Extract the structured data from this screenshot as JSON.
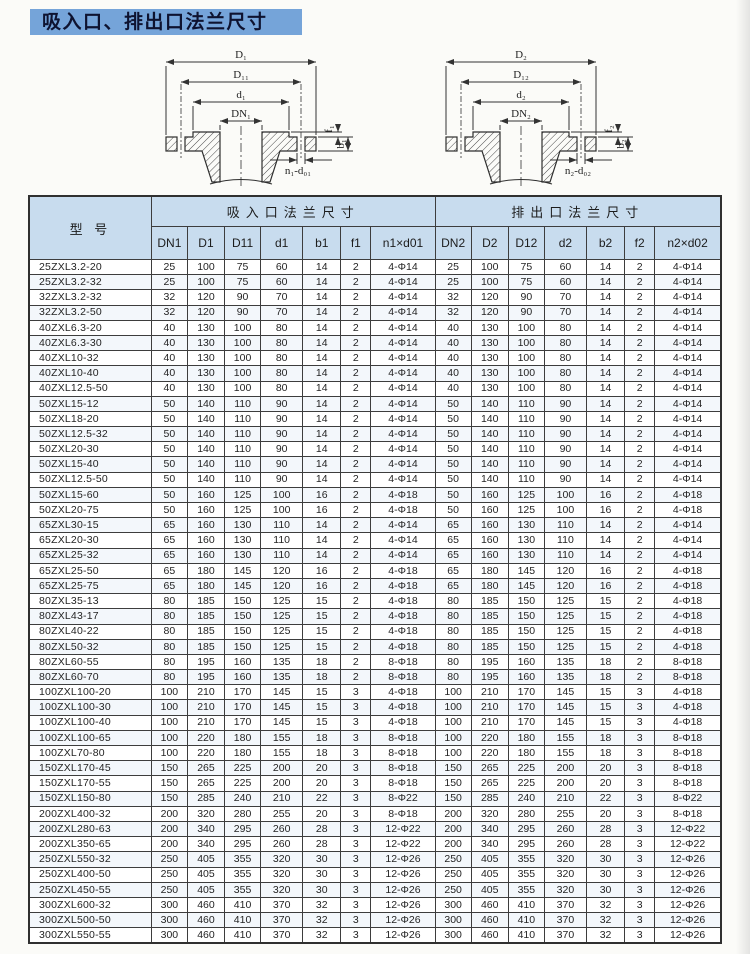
{
  "page": {
    "title": "吸入口、排出口法兰尺寸"
  },
  "diagrams": [
    {
      "outer": "D₁",
      "bolt_circle": "D₁₁",
      "seal_face": "d₁",
      "bore": "DN₁",
      "face_height": "f₁",
      "thickness": "b₁",
      "bolt_holes": "n₁-d₀₁"
    },
    {
      "outer": "D₂",
      "bolt_circle": "D₁₂",
      "seal_face": "d₂",
      "bore": "DN₂",
      "face_height": "f₂",
      "thickness": "b₂",
      "bolt_holes": "n₂-d₀₂"
    }
  ],
  "table": {
    "model_header": "型  号",
    "group_headers": [
      "吸入口法兰尺寸",
      "排出口法兰尺寸"
    ],
    "columns": [
      "DN1",
      "D1",
      "D11",
      "d1",
      "b1",
      "f1",
      "n1×d01",
      "DN2",
      "D2",
      "D12",
      "d2",
      "b2",
      "f2",
      "n2×d02"
    ],
    "rows": [
      [
        "25ZXL3.2-20",
        "25",
        "100",
        "75",
        "60",
        "14",
        "2",
        "4-Φ14",
        "25",
        "100",
        "75",
        "60",
        "14",
        "2",
        "4-Φ14"
      ],
      [
        "25ZXL3.2-32",
        "25",
        "100",
        "75",
        "60",
        "14",
        "2",
        "4-Φ14",
        "25",
        "100",
        "75",
        "60",
        "14",
        "2",
        "4-Φ14"
      ],
      [
        "32ZXL3.2-32",
        "32",
        "120",
        "90",
        "70",
        "14",
        "2",
        "4-Φ14",
        "32",
        "120",
        "90",
        "70",
        "14",
        "2",
        "4-Φ14"
      ],
      [
        "32ZXL3.2-50",
        "32",
        "120",
        "90",
        "70",
        "14",
        "2",
        "4-Φ14",
        "32",
        "120",
        "90",
        "70",
        "14",
        "2",
        "4-Φ14"
      ],
      [
        "40ZXL6.3-20",
        "40",
        "130",
        "100",
        "80",
        "14",
        "2",
        "4-Φ14",
        "40",
        "130",
        "100",
        "80",
        "14",
        "2",
        "4-Φ14"
      ],
      [
        "40ZXL6.3-30",
        "40",
        "130",
        "100",
        "80",
        "14",
        "2",
        "4-Φ14",
        "40",
        "130",
        "100",
        "80",
        "14",
        "2",
        "4-Φ14"
      ],
      [
        "40ZXL10-32",
        "40",
        "130",
        "100",
        "80",
        "14",
        "2",
        "4-Φ14",
        "40",
        "130",
        "100",
        "80",
        "14",
        "2",
        "4-Φ14"
      ],
      [
        "40ZXL10-40",
        "40",
        "130",
        "100",
        "80",
        "14",
        "2",
        "4-Φ14",
        "40",
        "130",
        "100",
        "80",
        "14",
        "2",
        "4-Φ14"
      ],
      [
        "40ZXL12.5-50",
        "40",
        "130",
        "100",
        "80",
        "14",
        "2",
        "4-Φ14",
        "40",
        "130",
        "100",
        "80",
        "14",
        "2",
        "4-Φ14"
      ],
      [
        "50ZXL15-12",
        "50",
        "140",
        "110",
        "90",
        "14",
        "2",
        "4-Φ14",
        "50",
        "140",
        "110",
        "90",
        "14",
        "2",
        "4-Φ14"
      ],
      [
        "50ZXL18-20",
        "50",
        "140",
        "110",
        "90",
        "14",
        "2",
        "4-Φ14",
        "50",
        "140",
        "110",
        "90",
        "14",
        "2",
        "4-Φ14"
      ],
      [
        "50ZXL12.5-32",
        "50",
        "140",
        "110",
        "90",
        "14",
        "2",
        "4-Φ14",
        "50",
        "140",
        "110",
        "90",
        "14",
        "2",
        "4-Φ14"
      ],
      [
        "50ZXL20-30",
        "50",
        "140",
        "110",
        "90",
        "14",
        "2",
        "4-Φ14",
        "50",
        "140",
        "110",
        "90",
        "14",
        "2",
        "4-Φ14"
      ],
      [
        "50ZXL15-40",
        "50",
        "140",
        "110",
        "90",
        "14",
        "2",
        "4-Φ14",
        "50",
        "140",
        "110",
        "90",
        "14",
        "2",
        "4-Φ14"
      ],
      [
        "50ZXL12.5-50",
        "50",
        "140",
        "110",
        "90",
        "14",
        "2",
        "4-Φ14",
        "50",
        "140",
        "110",
        "90",
        "14",
        "2",
        "4-Φ14"
      ],
      [
        "50ZXL15-60",
        "50",
        "160",
        "125",
        "100",
        "16",
        "2",
        "4-Φ18",
        "50",
        "160",
        "125",
        "100",
        "16",
        "2",
        "4-Φ18"
      ],
      [
        "50ZXL20-75",
        "50",
        "160",
        "125",
        "100",
        "16",
        "2",
        "4-Φ18",
        "50",
        "160",
        "125",
        "100",
        "16",
        "2",
        "4-Φ18"
      ],
      [
        "65ZXL30-15",
        "65",
        "160",
        "130",
        "110",
        "14",
        "2",
        "4-Φ14",
        "65",
        "160",
        "130",
        "110",
        "14",
        "2",
        "4-Φ14"
      ],
      [
        "65ZXL20-30",
        "65",
        "160",
        "130",
        "110",
        "14",
        "2",
        "4-Φ14",
        "65",
        "160",
        "130",
        "110",
        "14",
        "2",
        "4-Φ14"
      ],
      [
        "65ZXL25-32",
        "65",
        "160",
        "130",
        "110",
        "14",
        "2",
        "4-Φ14",
        "65",
        "160",
        "130",
        "110",
        "14",
        "2",
        "4-Φ14"
      ],
      [
        "65ZXL25-50",
        "65",
        "180",
        "145",
        "120",
        "16",
        "2",
        "4-Φ18",
        "65",
        "180",
        "145",
        "120",
        "16",
        "2",
        "4-Φ18"
      ],
      [
        "65ZXL25-75",
        "65",
        "180",
        "145",
        "120",
        "16",
        "2",
        "4-Φ18",
        "65",
        "180",
        "145",
        "120",
        "16",
        "2",
        "4-Φ18"
      ],
      [
        "80ZXL35-13",
        "80",
        "185",
        "150",
        "125",
        "15",
        "2",
        "4-Φ18",
        "80",
        "185",
        "150",
        "125",
        "15",
        "2",
        "4-Φ18"
      ],
      [
        "80ZXL43-17",
        "80",
        "185",
        "150",
        "125",
        "15",
        "2",
        "4-Φ18",
        "80",
        "185",
        "150",
        "125",
        "15",
        "2",
        "4-Φ18"
      ],
      [
        "80ZXL40-22",
        "80",
        "185",
        "150",
        "125",
        "15",
        "2",
        "4-Φ18",
        "80",
        "185",
        "150",
        "125",
        "15",
        "2",
        "4-Φ18"
      ],
      [
        "80ZXL50-32",
        "80",
        "185",
        "150",
        "125",
        "15",
        "2",
        "4-Φ18",
        "80",
        "185",
        "150",
        "125",
        "15",
        "2",
        "4-Φ18"
      ],
      [
        "80ZXL60-55",
        "80",
        "195",
        "160",
        "135",
        "18",
        "2",
        "8-Φ18",
        "80",
        "195",
        "160",
        "135",
        "18",
        "2",
        "8-Φ18"
      ],
      [
        "80ZXL60-70",
        "80",
        "195",
        "160",
        "135",
        "18",
        "2",
        "8-Φ18",
        "80",
        "195",
        "160",
        "135",
        "18",
        "2",
        "8-Φ18"
      ],
      [
        "100ZXL100-20",
        "100",
        "210",
        "170",
        "145",
        "15",
        "3",
        "4-Φ18",
        "100",
        "210",
        "170",
        "145",
        "15",
        "3",
        "4-Φ18"
      ],
      [
        "100ZXL100-30",
        "100",
        "210",
        "170",
        "145",
        "15",
        "3",
        "4-Φ18",
        "100",
        "210",
        "170",
        "145",
        "15",
        "3",
        "4-Φ18"
      ],
      [
        "100ZXL100-40",
        "100",
        "210",
        "170",
        "145",
        "15",
        "3",
        "4-Φ18",
        "100",
        "210",
        "170",
        "145",
        "15",
        "3",
        "4-Φ18"
      ],
      [
        "100ZXL100-65",
        "100",
        "220",
        "180",
        "155",
        "18",
        "3",
        "8-Φ18",
        "100",
        "220",
        "180",
        "155",
        "18",
        "3",
        "8-Φ18"
      ],
      [
        "100ZXL70-80",
        "100",
        "220",
        "180",
        "155",
        "18",
        "3",
        "8-Φ18",
        "100",
        "220",
        "180",
        "155",
        "18",
        "3",
        "8-Φ18"
      ],
      [
        "150ZXL170-45",
        "150",
        "265",
        "225",
        "200",
        "20",
        "3",
        "8-Φ18",
        "150",
        "265",
        "225",
        "200",
        "20",
        "3",
        "8-Φ18"
      ],
      [
        "150ZXL170-55",
        "150",
        "265",
        "225",
        "200",
        "20",
        "3",
        "8-Φ18",
        "150",
        "265",
        "225",
        "200",
        "20",
        "3",
        "8-Φ18"
      ],
      [
        "150ZXL150-80",
        "150",
        "285",
        "240",
        "210",
        "22",
        "3",
        "8-Φ22",
        "150",
        "285",
        "240",
        "210",
        "22",
        "3",
        "8-Φ22"
      ],
      [
        "200ZXL400-32",
        "200",
        "320",
        "280",
        "255",
        "20",
        "3",
        "8-Φ18",
        "200",
        "320",
        "280",
        "255",
        "20",
        "3",
        "8-Φ18"
      ],
      [
        "200ZXL280-63",
        "200",
        "340",
        "295",
        "260",
        "28",
        "3",
        "12-Φ22",
        "200",
        "340",
        "295",
        "260",
        "28",
        "3",
        "12-Φ22"
      ],
      [
        "200ZXL350-65",
        "200",
        "340",
        "295",
        "260",
        "28",
        "3",
        "12-Φ22",
        "200",
        "340",
        "295",
        "260",
        "28",
        "3",
        "12-Φ22"
      ],
      [
        "250ZXL550-32",
        "250",
        "405",
        "355",
        "320",
        "30",
        "3",
        "12-Φ26",
        "250",
        "405",
        "355",
        "320",
        "30",
        "3",
        "12-Φ26"
      ],
      [
        "250ZXL400-50",
        "250",
        "405",
        "355",
        "320",
        "30",
        "3",
        "12-Φ26",
        "250",
        "405",
        "355",
        "320",
        "30",
        "3",
        "12-Φ26"
      ],
      [
        "250ZXL450-55",
        "250",
        "405",
        "355",
        "320",
        "30",
        "3",
        "12-Φ26",
        "250",
        "405",
        "355",
        "320",
        "30",
        "3",
        "12-Φ26"
      ],
      [
        "300ZXL600-32",
        "300",
        "460",
        "410",
        "370",
        "32",
        "3",
        "12-Φ26",
        "300",
        "460",
        "410",
        "370",
        "32",
        "3",
        "12-Φ26"
      ],
      [
        "300ZXL500-50",
        "300",
        "460",
        "410",
        "370",
        "32",
        "3",
        "12-Φ26",
        "300",
        "460",
        "410",
        "370",
        "32",
        "3",
        "12-Φ26"
      ],
      [
        "300ZXL550-55",
        "300",
        "460",
        "410",
        "370",
        "32",
        "3",
        "12-Φ26",
        "300",
        "460",
        "410",
        "370",
        "32",
        "3",
        "12-Φ26"
      ]
    ]
  }
}
